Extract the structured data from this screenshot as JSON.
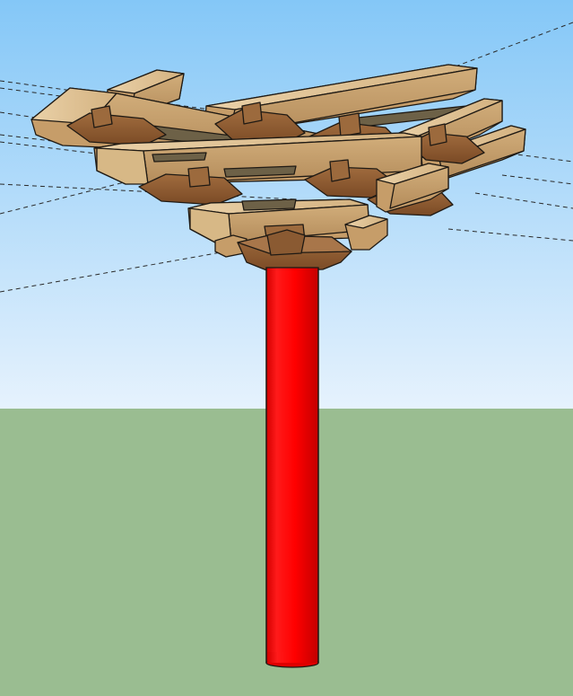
{
  "scene": {
    "colors": {
      "sky_top": "#84c7f7",
      "sky_bottom": "#e6f2fd",
      "ground": "#9abd91",
      "column": "#ff0000",
      "column_shade": "#c40000",
      "wood_light": "#e2c495",
      "wood_mid": "#c69d69",
      "wood_dark": "#8a5a32",
      "wood_shadow": "#6d6147",
      "edge": "#1f1a14"
    }
  }
}
